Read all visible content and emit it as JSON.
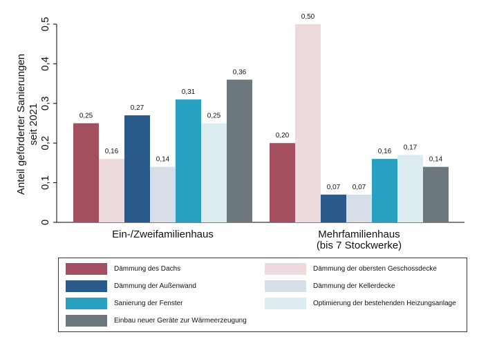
{
  "chart_data": {
    "type": "bar",
    "categories": [
      "Ein-/Zweifamilienhaus",
      "Mehrfamilienhaus\n(bis 7 Stockwerke)"
    ],
    "ylabel": "Anteil geförderter Sanierungen\nseit 2021",
    "ylim": [
      0,
      0.5
    ],
    "yticks": [
      "0",
      "0,1",
      "0,2",
      "0,3",
      "0,4",
      "0,5"
    ],
    "grid": false,
    "legend_placement": "bottom",
    "series": [
      {
        "name": "Dämmung des Dachs",
        "color": "#a34f5f",
        "values": [
          0.25,
          0.2
        ],
        "labels": [
          "0,25",
          "0,20"
        ]
      },
      {
        "name": "Dämmung der obersten Geschossdecke",
        "color": "#eddadc",
        "values": [
          0.16,
          0.5
        ],
        "labels": [
          "0,16",
          "0,50"
        ]
      },
      {
        "name": "Dämmung der Außenwand",
        "color": "#2a5a8a",
        "values": [
          0.27,
          0.07
        ],
        "labels": [
          "0,27",
          "0,07"
        ]
      },
      {
        "name": "Dämmung der Kellerdecke",
        "color": "#d6dfe7",
        "values": [
          0.14,
          0.07
        ],
        "labels": [
          "0,14",
          "0,07"
        ]
      },
      {
        "name": "Sanierung der Fenster",
        "color": "#27a0c2",
        "values": [
          0.31,
          0.16
        ],
        "labels": [
          "0,31",
          "0,16"
        ]
      },
      {
        "name": "Optimierung der bestehenden Heizungsanlage",
        "color": "#dcecf0",
        "values": [
          0.25,
          0.17
        ],
        "labels": [
          "0,25",
          "0,17"
        ]
      },
      {
        "name": "Einbau neuer Geräte zur Wärmeerzeugung",
        "color": "#6c777e",
        "values": [
          0.36,
          0.14
        ],
        "labels": [
          "0,36",
          "0,14"
        ]
      }
    ]
  }
}
